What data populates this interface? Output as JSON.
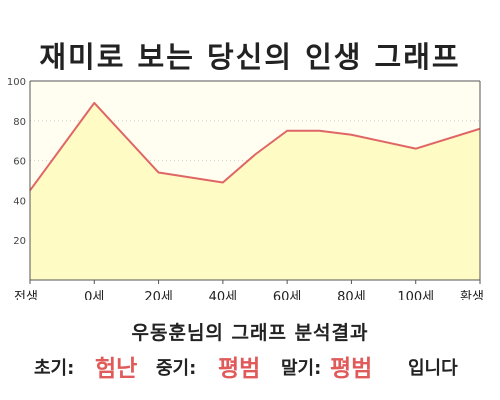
{
  "title": "재미로 보는 당신의 인생 그래프",
  "chart_data": {
    "type": "area",
    "title": "재미로 보는 당신의 인생 그래프",
    "x_categories": [
      "전생",
      "0세",
      "20세",
      "40세",
      "60세",
      "80세",
      "100세",
      "환생"
    ],
    "x": [
      -20,
      0,
      20,
      40,
      60,
      80,
      100,
      120
    ],
    "y_ticks": [
      20,
      40,
      60,
      80,
      100
    ],
    "ylim": [
      0,
      100
    ],
    "xlim": [
      -20,
      120
    ],
    "grid": "horizontal-dotted",
    "points": [
      {
        "x": -20,
        "y": 45
      },
      {
        "x": 0,
        "y": 89
      },
      {
        "x": 20,
        "y": 54
      },
      {
        "x": 40,
        "y": 49
      },
      {
        "x": 50,
        "y": 63
      },
      {
        "x": 60,
        "y": 75
      },
      {
        "x": 70,
        "y": 75
      },
      {
        "x": 80,
        "y": 73
      },
      {
        "x": 100,
        "y": 66
      },
      {
        "x": 120,
        "y": 76
      }
    ],
    "colors": {
      "line": "#e06666",
      "fill": "#fffbc4",
      "plot_bg": "#fffef0"
    }
  },
  "result": {
    "subtitle": "우동훈님의 그래프 분석결과",
    "early_label": "초기:",
    "early_value": "험난",
    "mid_label": "중기:",
    "mid_value": "평범",
    "late_label": "말기:",
    "late_value": "평범",
    "ending": "입니다"
  }
}
